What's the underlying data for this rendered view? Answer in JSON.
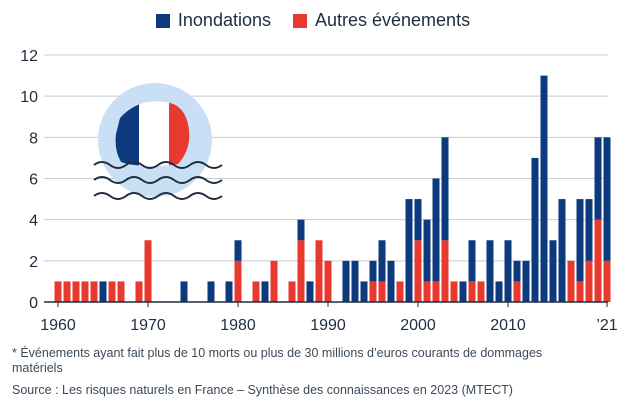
{
  "chart_data": {
    "type": "bar",
    "stacked": true,
    "years": [
      1960,
      1961,
      1962,
      1963,
      1964,
      1965,
      1966,
      1967,
      1968,
      1969,
      1970,
      1971,
      1972,
      1973,
      1974,
      1975,
      1976,
      1977,
      1978,
      1979,
      1980,
      1981,
      1982,
      1983,
      1984,
      1985,
      1986,
      1987,
      1988,
      1989,
      1990,
      1991,
      1992,
      1993,
      1994,
      1995,
      1996,
      1997,
      1998,
      1999,
      2000,
      2001,
      2002,
      2003,
      2004,
      2005,
      2006,
      2007,
      2008,
      2009,
      2010,
      2011,
      2012,
      2013,
      2014,
      2015,
      2016,
      2017,
      2018,
      2019,
      2020,
      2021
    ],
    "series": [
      {
        "name": "Autres événements",
        "color": "#e8392f",
        "values": [
          1,
          1,
          1,
          1,
          1,
          0,
          1,
          1,
          0,
          1,
          3,
          0,
          0,
          0,
          0,
          0,
          0,
          0,
          0,
          0,
          2,
          0,
          1,
          0,
          2,
          0,
          1,
          3,
          0,
          3,
          2,
          0,
          0,
          0,
          0,
          1,
          1,
          0,
          1,
          0,
          3,
          1,
          1,
          3,
          1,
          0,
          1,
          1,
          0,
          0,
          0,
          1,
          0,
          0,
          0,
          0,
          0,
          2,
          1,
          2,
          4,
          2
        ]
      },
      {
        "name": "Inondations",
        "color": "#0d3a7d",
        "values": [
          0,
          0,
          0,
          0,
          0,
          1,
          0,
          0,
          0,
          0,
          0,
          0,
          0,
          0,
          1,
          0,
          0,
          1,
          0,
          1,
          1,
          0,
          0,
          1,
          0,
          0,
          0,
          1,
          1,
          0,
          0,
          0,
          2,
          2,
          1,
          1,
          2,
          2,
          0,
          5,
          2,
          3,
          5,
          5,
          0,
          1,
          2,
          0,
          3,
          1,
          3,
          1,
          2,
          7,
          11,
          3,
          5,
          0,
          4,
          3,
          4,
          6
        ]
      }
    ],
    "legend": [
      "Inondations",
      "Autres événements"
    ],
    "xticks": [
      "1960",
      "1970",
      "1980",
      "1990",
      "2000",
      "2010",
      "’21"
    ],
    "yticks": [
      "0",
      "2",
      "4",
      "6",
      "8",
      "10",
      "12"
    ],
    "ylim": [
      0,
      12
    ],
    "grid": true
  },
  "footnote": "* Événements ayant fait plus de 10 morts ou plus de 30 millions d’euros courants de dommages matériels",
  "source": "Source : Les risques naturels en France – Synthèse des connaissances en 2023 (MTECT)"
}
